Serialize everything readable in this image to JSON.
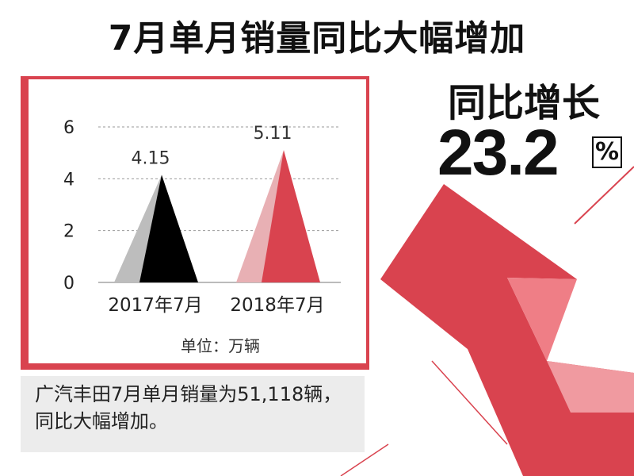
{
  "headline": "7月单月销量同比大幅增加",
  "growth": {
    "title": "同比增长",
    "value": "23.2",
    "unit": "%"
  },
  "unit_note": "单位：万辆",
  "note": "广汽丰田7月单月销量为51,118辆，同比大幅增加。",
  "colors": {
    "accent": "#d9434f",
    "bar_2017": "#000000",
    "bar_2017_light": "#bdbdbd",
    "bar_2018": "#d9434f",
    "bar_2018_light": "#e8b0b4"
  },
  "chart_data": {
    "type": "bar",
    "categories": [
      "2017年7月",
      "2018年7月"
    ],
    "values": [
      4.15,
      5.11
    ],
    "data_labels": [
      "4.15",
      "5.11"
    ],
    "ylim": [
      0,
      6
    ],
    "yticks": [
      0,
      2,
      4,
      6
    ],
    "grid": true
  }
}
